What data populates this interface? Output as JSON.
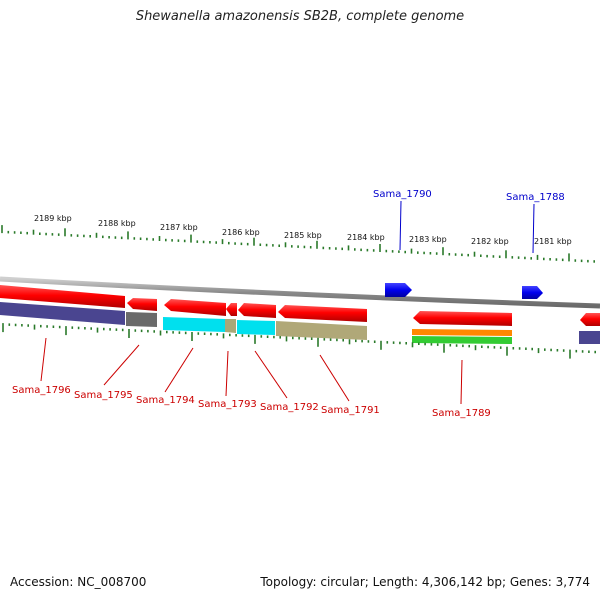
{
  "title": "Shewanella amazonensis SB2B, complete genome",
  "footer": {
    "accession": "Accession: NC_008700",
    "topology": "Topology: circular; Length: 4,306,142 bp; Genes: 3,774"
  },
  "scale_labels": [
    "2189 kbp",
    "2188 kbp",
    "2187 kbp",
    "2186 kbp",
    "2185 kbp",
    "2184 kbp",
    "2183 kbp",
    "2182 kbp",
    "2181 kbp"
  ],
  "genes_forward": [
    {
      "label": "Sama_1790",
      "color": "#0000cc"
    },
    {
      "label": "Sama_1788",
      "color": "#0000cc"
    }
  ],
  "genes_reverse": [
    {
      "label": "Sama_1796",
      "color": "#cc0000"
    },
    {
      "label": "Sama_1795",
      "color": "#cc0000"
    },
    {
      "label": "Sama_1794",
      "color": "#cc0000"
    },
    {
      "label": "Sama_1793",
      "color": "#cc0000"
    },
    {
      "label": "Sama_1792",
      "color": "#cc0000"
    },
    {
      "label": "Sama_1791",
      "color": "#cc0000"
    },
    {
      "label": "Sama_1789",
      "color": "#cc0000"
    }
  ]
}
